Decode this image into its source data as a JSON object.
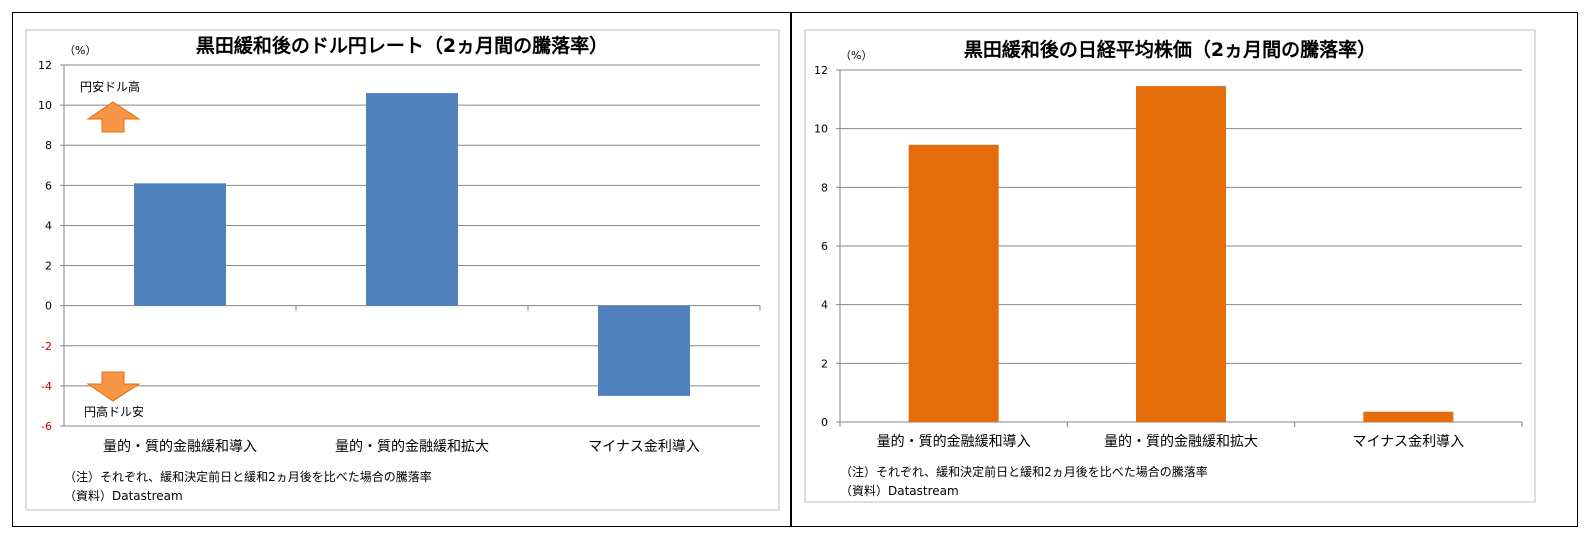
{
  "chart_data": [
    {
      "type": "bar",
      "title": "黒田緩和後のドル円レート（2ヵ月間の騰落率）",
      "unit_label": "（%）",
      "categories": [
        "量的・質的金融緩和導入",
        "量的・質的金融緩和拡大",
        "マイナス金利導入"
      ],
      "values": [
        6.1,
        10.6,
        -4.5
      ],
      "ylim": [
        -6,
        12
      ],
      "yticks": [
        12,
        10,
        8,
        6,
        4,
        2,
        0,
        -2,
        -4,
        -6
      ],
      "grid": true,
      "color": "#4f81bd",
      "negative_tick_color": "#c00000",
      "annotations": {
        "up": "円安ドル高",
        "down": "円高ドル安"
      },
      "arrow_color": "#f79646",
      "note": "（注）それぞれ、緩和決定前日と緩和2ヵ月後を比べた場合の騰落率",
      "source": "（資料）Datastream"
    },
    {
      "type": "bar",
      "title": "黒田緩和後の日経平均株価（2ヵ月間の騰落率）",
      "unit_label": "（%）",
      "categories": [
        "量的・質的金融緩和導入",
        "量的・質的金融緩和拡大",
        "マイナス金利導入"
      ],
      "values": [
        9.45,
        11.45,
        0.35
      ],
      "ylim": [
        0,
        12
      ],
      "yticks": [
        12,
        10,
        8,
        6,
        4,
        2,
        0
      ],
      "grid": true,
      "color": "#e46c0a",
      "note": "（注）それぞれ、緩和決定前日と緩和2ヵ月後を比べた場合の騰落率",
      "source": "（資料）Datastream"
    }
  ]
}
